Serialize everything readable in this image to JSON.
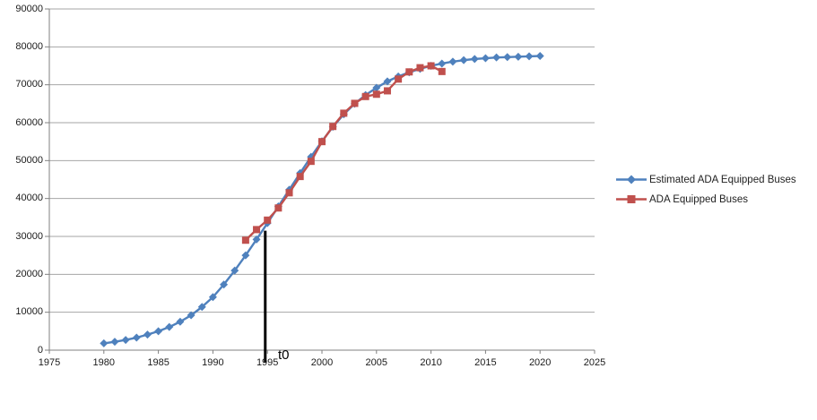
{
  "chart_data": {
    "type": "line",
    "title": "",
    "xlabel": "",
    "ylabel": "",
    "grid": "horizontal",
    "legend_position": "right",
    "x_axis": {
      "min": 1975,
      "max": 2025,
      "tick_step": 5,
      "ticks": [
        1975,
        1980,
        1985,
        1990,
        1995,
        2000,
        2005,
        2010,
        2015,
        2020,
        2025
      ]
    },
    "y_axis": {
      "min": 0,
      "max": 90000,
      "tick_step": 10000,
      "ticks": [
        0,
        10000,
        20000,
        30000,
        40000,
        50000,
        60000,
        70000,
        80000,
        90000
      ]
    },
    "series": [
      {
        "name": "Estimated ADA Equipped Buses",
        "color": "#4F81BD",
        "marker": "diamond",
        "x": [
          1980,
          1981,
          1982,
          1983,
          1984,
          1985,
          1986,
          1987,
          1988,
          1989,
          1990,
          1991,
          1992,
          1993,
          1994,
          1995,
          1996,
          1997,
          1998,
          1999,
          2000,
          2001,
          2002,
          2003,
          2004,
          2005,
          2006,
          2007,
          2008,
          2009,
          2010,
          2011,
          2012,
          2013,
          2014,
          2015,
          2016,
          2017,
          2018,
          2019,
          2020
        ],
        "values": [
          1800,
          2200,
          2700,
          3300,
          4100,
          5000,
          6100,
          7500,
          9200,
          11400,
          14000,
          17300,
          21000,
          25000,
          29200,
          33500,
          37900,
          42300,
          46700,
          51000,
          55100,
          58900,
          62200,
          65000,
          67300,
          69200,
          70900,
          72200,
          73300,
          74200,
          75000,
          75600,
          76100,
          76500,
          76800,
          77000,
          77200,
          77300,
          77400,
          77500,
          77600
        ]
      },
      {
        "name": "ADA Equipped Buses",
        "color": "#C0504D",
        "marker": "square",
        "x": [
          1993,
          1994,
          1995,
          1996,
          1997,
          1998,
          1999,
          2000,
          2001,
          2002,
          2003,
          2004,
          2005,
          2006,
          2007,
          2008,
          2009,
          2010,
          2011
        ],
        "values": [
          29000,
          31800,
          34300,
          37500,
          41500,
          45800,
          49800,
          55000,
          59000,
          62500,
          65100,
          66900,
          67500,
          68400,
          71500,
          73400,
          74500,
          75000,
          73500
        ]
      }
    ],
    "annotation": {
      "label": "t0",
      "x": 1994.8,
      "y_top": 31500,
      "line_color": "#000000"
    }
  },
  "colors": {
    "background": "#FFFFFF",
    "gridline": "#A6A6A6",
    "axis": "#808080",
    "tick_text": "#1A1A1A"
  }
}
